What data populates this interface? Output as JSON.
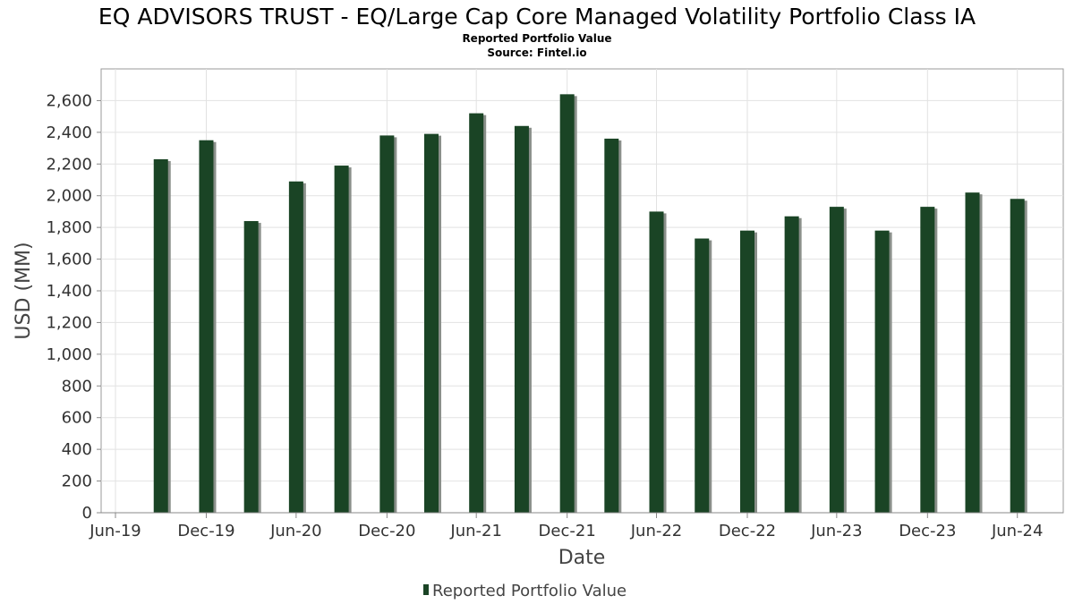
{
  "chart_data": {
    "type": "bar",
    "title": "EQ ADVISORS TRUST - EQ/Large Cap Core Managed Volatility Portfolio Class IA",
    "subtitle": "Reported Portfolio Value",
    "source": "Source: Fintel.io",
    "xlabel": "Date",
    "ylabel": "USD (MM)",
    "ylim": [
      0,
      2800
    ],
    "y_ticks": [
      0,
      200,
      400,
      600,
      800,
      1000,
      1200,
      1400,
      1600,
      1800,
      2000,
      2200,
      2400,
      2600
    ],
    "y_tick_labels": [
      "0",
      "200",
      "400",
      "600",
      "800",
      "1,000",
      "1,200",
      "1,400",
      "1,600",
      "1,800",
      "2,000",
      "2,200",
      "2,400",
      "2,600"
    ],
    "x_range": [
      "2019-06-01",
      "2024-10-01"
    ],
    "x_ticks": [
      "2019-06-30",
      "2019-12-31",
      "2020-06-30",
      "2020-12-31",
      "2021-06-30",
      "2021-12-31",
      "2022-06-30",
      "2022-12-31",
      "2023-06-30",
      "2023-12-31",
      "2024-06-30"
    ],
    "x_tick_labels": [
      "Jun-19",
      "Dec-19",
      "Jun-20",
      "Dec-20",
      "Jun-21",
      "Dec-21",
      "Jun-22",
      "Dec-22",
      "Jun-23",
      "Dec-23",
      "Jun-24"
    ],
    "grid": true,
    "legend_position": "bottom-center",
    "series": [
      {
        "name": "Reported Portfolio Value",
        "color": "#1a4425",
        "x": [
          "2019-09-30",
          "2019-12-31",
          "2020-03-31",
          "2020-06-30",
          "2020-09-30",
          "2020-12-31",
          "2021-03-31",
          "2021-06-30",
          "2021-09-30",
          "2021-12-31",
          "2022-03-31",
          "2022-06-30",
          "2022-09-30",
          "2022-12-31",
          "2023-03-31",
          "2023-06-30",
          "2023-09-30",
          "2023-12-31",
          "2024-03-31",
          "2024-06-30"
        ],
        "values": [
          2230,
          2350,
          1840,
          2090,
          2190,
          2380,
          2390,
          2520,
          2440,
          2640,
          2360,
          1900,
          1730,
          1780,
          1870,
          1930,
          1780,
          1930,
          2020,
          1980
        ]
      }
    ]
  }
}
